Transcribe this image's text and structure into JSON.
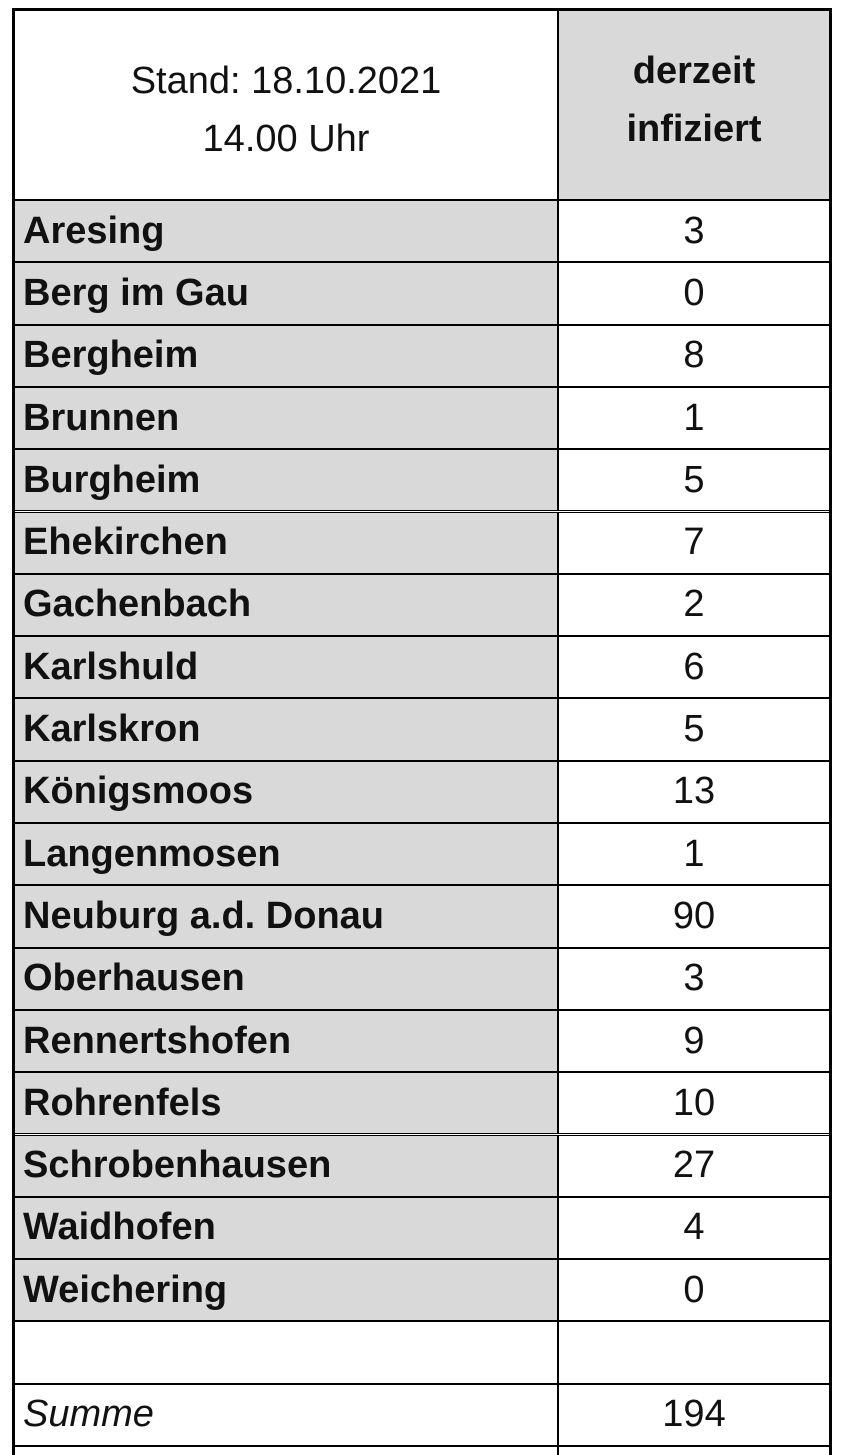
{
  "header": {
    "left": [
      "Stand: 18.10.2021",
      "14.00 Uhr"
    ],
    "right": [
      "derzeit",
      "infiziert"
    ]
  },
  "table": {
    "rows": [
      [
        "Aresing",
        3
      ],
      [
        "Berg im Gau",
        0
      ],
      [
        "Bergheim",
        8
      ],
      [
        "Brunnen",
        1
      ],
      [
        "Burgheim",
        5
      ],
      [
        "Ehekirchen",
        7
      ],
      [
        "Gachenbach",
        2
      ],
      [
        "Karlshuld",
        6
      ],
      [
        "Karlskron",
        5
      ],
      [
        "Königsmoos",
        13
      ],
      [
        "Langenmosen",
        1
      ],
      [
        "Neuburg a.d. Donau",
        90
      ],
      [
        "Oberhausen",
        3
      ],
      [
        "Rennertshofen",
        9
      ],
      [
        "Rohrenfels",
        10
      ],
      [
        "Schrobenhausen",
        27
      ],
      [
        "Waidhofen",
        4
      ],
      [
        "Weichering",
        0
      ]
    ]
  },
  "total": {
    "label": "Summe",
    "value": 194
  }
}
